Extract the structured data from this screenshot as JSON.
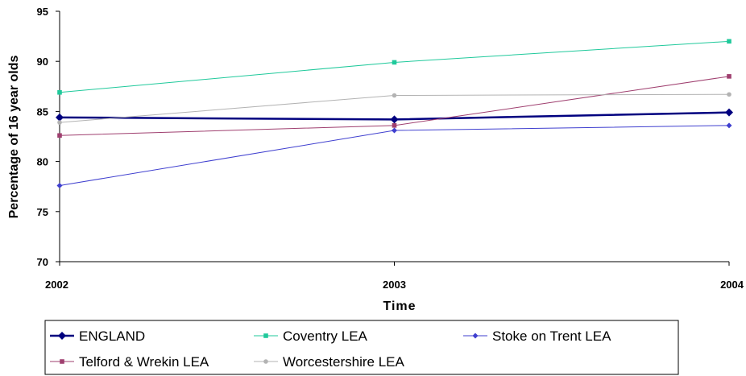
{
  "chart_data": {
    "type": "line",
    "title": "",
    "xlabel": "Time",
    "ylabel": "Percentage of 16 year olds",
    "categories": [
      "2002",
      "2003",
      "2004"
    ],
    "ylim": [
      70,
      95
    ],
    "yticks": [
      70,
      75,
      80,
      85,
      90,
      95
    ],
    "grid": false,
    "legend_position": "bottom",
    "series": [
      {
        "name": "ENGLAND",
        "values": [
          84.4,
          84.2,
          84.9
        ],
        "color": "#00007f",
        "marker": "diamond",
        "bold": true
      },
      {
        "name": "Coventry LEA",
        "values": [
          86.9,
          89.9,
          92.0
        ],
        "color": "#1fc99b",
        "marker": "square",
        "bold": false
      },
      {
        "name": "Stoke on Trent LEA",
        "values": [
          77.6,
          83.1,
          83.6
        ],
        "color": "#3f3fcf",
        "marker": "diamond",
        "bold": false
      },
      {
        "name": "Telford & Wrekin LEA",
        "values": [
          82.6,
          83.6,
          88.5
        ],
        "color": "#9f3f6f",
        "marker": "square",
        "bold": false
      },
      {
        "name": "Worcestershire LEA",
        "values": [
          83.9,
          86.6,
          86.7
        ],
        "color": "#b3b3b3",
        "marker": "circle",
        "bold": false
      }
    ]
  }
}
